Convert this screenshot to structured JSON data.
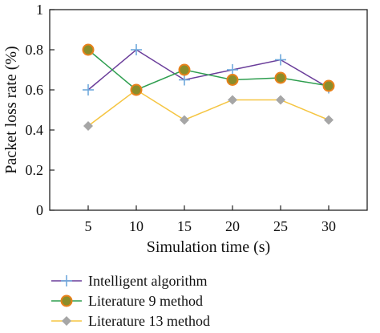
{
  "chart_data": {
    "type": "line",
    "title": "",
    "xlabel": "Simulation time (s)",
    "ylabel": "Packet loss rate (%)",
    "x": [
      5,
      10,
      15,
      20,
      25,
      30
    ],
    "x_tick_labels": [
      "5",
      "10",
      "15",
      "20",
      "25",
      "30"
    ],
    "y_tick_labels": [
      "0",
      "0.2",
      "0.4",
      "0.6",
      "0.8",
      "1"
    ],
    "ylim": [
      0,
      1
    ],
    "grid": false,
    "legend_position": "bottom",
    "series": [
      {
        "name": "Intelligent algorithm",
        "values": [
          0.6,
          0.8,
          0.65,
          0.7,
          0.75,
          0.61
        ],
        "line_color": "#6a3d9a",
        "marker": "plus",
        "marker_color": "#6fa8dc"
      },
      {
        "name": "Literature 9 method",
        "values": [
          0.8,
          0.6,
          0.7,
          0.65,
          0.66,
          0.62
        ],
        "line_color": "#2e9e4f",
        "marker": "circle",
        "marker_color": "#8b8d2a",
        "marker_edge": "#e8811a"
      },
      {
        "name": "Literature 13 method",
        "values": [
          0.42,
          0.6,
          0.45,
          0.55,
          0.55,
          0.45
        ],
        "line_color": "#f5c542",
        "marker": "diamond",
        "marker_color": "#a6a6a6"
      }
    ]
  }
}
